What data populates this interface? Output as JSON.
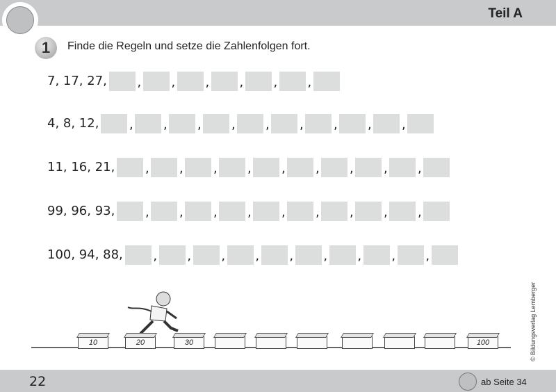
{
  "header": {
    "title": "Teil A",
    "logo_icon": "tiger-medallion-icon"
  },
  "task": {
    "number": "1",
    "instruction": "Finde die Regeln und setze die Zahlenfolgen fort."
  },
  "sequences": [
    {
      "start": "7, 17, 27,",
      "blanks": 7
    },
    {
      "start": "4, 8, 12,",
      "blanks": 10
    },
    {
      "start": "11, 16, 21,",
      "blanks": 10
    },
    {
      "start": "99, 96, 93,",
      "blanks": 10
    },
    {
      "start": "100, 94, 88,",
      "blanks": 10
    }
  ],
  "illustration": {
    "bricks": [
      "10",
      "20",
      "30",
      "",
      "",
      "",
      "",
      "",
      "",
      "100"
    ]
  },
  "copyright": "© Bildungsverlag Lemberger",
  "footer": {
    "page_number": "22",
    "reference": "ab Seite 34",
    "reference_icon": "tiger-medallion-icon"
  }
}
